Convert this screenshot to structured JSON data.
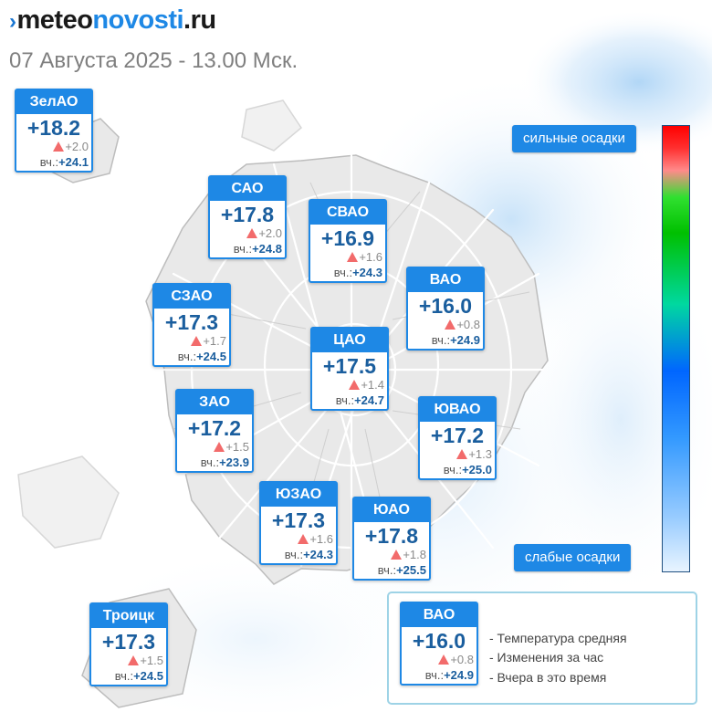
{
  "logo": {
    "mark": "›",
    "part1": "meteo",
    "part2": "novosti",
    "part3": ".ru"
  },
  "subtitle": "07 Августа 2025 - 13.00 Мск.",
  "districts": [
    {
      "name": "ЗелАО",
      "temp": "+18.2",
      "change": "+2.0",
      "yesterday_label": "вч.:",
      "yesterday": "+24.1",
      "trend": "up"
    },
    {
      "name": "САО",
      "temp": "+17.8",
      "change": "+2.0",
      "yesterday_label": "вч.:",
      "yesterday": "+24.8",
      "trend": "up"
    },
    {
      "name": "СВАО",
      "temp": "+16.9",
      "change": "+1.6",
      "yesterday_label": "вч.:",
      "yesterday": "+24.3",
      "trend": "up"
    },
    {
      "name": "ВАО",
      "temp": "+16.0",
      "change": "+0.8",
      "yesterday_label": "вч.:",
      "yesterday": "+24.9",
      "trend": "up"
    },
    {
      "name": "СЗАО",
      "temp": "+17.3",
      "change": "+1.7",
      "yesterday_label": "вч.:",
      "yesterday": "+24.5",
      "trend": "up"
    },
    {
      "name": "ЦАО",
      "temp": "+17.5",
      "change": "+1.4",
      "yesterday_label": "вч.:",
      "yesterday": "+24.7",
      "trend": "up"
    },
    {
      "name": "ЗАО",
      "temp": "+17.2",
      "change": "+1.5",
      "yesterday_label": "вч.:",
      "yesterday": "+23.9",
      "trend": "up"
    },
    {
      "name": "ЮВАО",
      "temp": "+17.2",
      "change": "+1.3",
      "yesterday_label": "вч.:",
      "yesterday": "+25.0",
      "trend": "up"
    },
    {
      "name": "ЮЗАО",
      "temp": "+17.3",
      "change": "+1.6",
      "yesterday_label": "вч.:",
      "yesterday": "+24.3",
      "trend": "up"
    },
    {
      "name": "ЮАО",
      "temp": "+17.8",
      "change": "+1.8",
      "yesterday_label": "вч.:",
      "yesterday": "+25.5",
      "trend": "up"
    },
    {
      "name": "Троицк",
      "temp": "+17.3",
      "change": "+1.5",
      "yesterday_label": "вч.:",
      "yesterday": "+24.5",
      "trend": "up"
    }
  ],
  "legend": {
    "top_label": "сильные осадки",
    "bottom_label": "слабые осадки",
    "colors": [
      "#ff0000",
      "#ff8a8a",
      "#00c000",
      "#0066ff",
      "#99ccff",
      "#e8f4ff"
    ]
  },
  "key": {
    "sample": {
      "name": "ВАО",
      "temp": "+16.0",
      "change": "+0.8",
      "yesterday_label": "вч.:",
      "yesterday": "+24.9"
    },
    "lines": [
      "- Температура средняя",
      "- Изменения за час",
      "- Вчера в это время"
    ]
  },
  "colors": {
    "accent": "#1e88e5",
    "temp_text": "#1a5e9e",
    "trend_up": "#f26b6b"
  }
}
